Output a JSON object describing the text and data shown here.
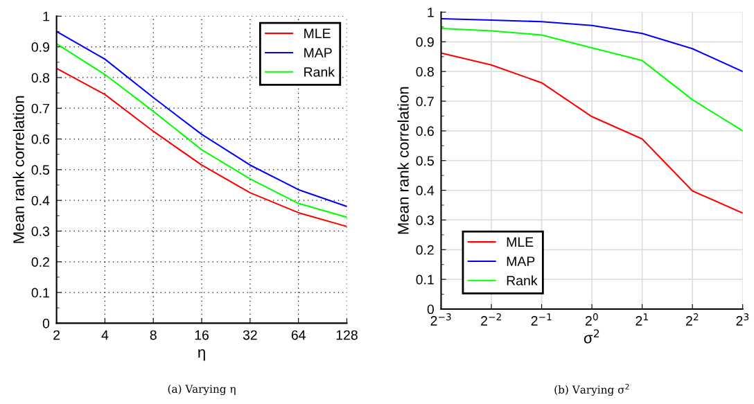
{
  "chart_data": [
    {
      "type": "line",
      "x": [
        2,
        4,
        8,
        16,
        32,
        64,
        128
      ],
      "log": "x",
      "xlim": [
        2,
        128
      ],
      "xticks": [
        2,
        4,
        8,
        16,
        32,
        64,
        128
      ],
      "ylim": [
        0,
        1
      ],
      "yticks": [
        0,
        0.1,
        0.2,
        0.3,
        0.4,
        0.5,
        0.6,
        0.7,
        0.8,
        0.9,
        1
      ],
      "xlabel": "η",
      "ylabel": "Mean rank correlation",
      "grid": true,
      "legend": "top right",
      "annotations": [
        "(a) Varying η"
      ],
      "series": [
        {
          "name": "MLE",
          "color": "#ff0000",
          "values": [
            0.83,
            0.745,
            0.625,
            0.515,
            0.425,
            0.36,
            0.315
          ]
        },
        {
          "name": "MAP",
          "color": "#0000ff",
          "values": [
            0.95,
            0.86,
            0.735,
            0.615,
            0.515,
            0.435,
            0.38
          ]
        },
        {
          "name": "Rank",
          "color": "#00ff00",
          "values": [
            0.91,
            0.81,
            0.69,
            0.565,
            0.47,
            0.39,
            0.345
          ]
        }
      ]
    },
    {
      "type": "line",
      "x": [
        0.125,
        0.25,
        0.5,
        1,
        2,
        4,
        8
      ],
      "log": "x",
      "xlim": [
        0.125,
        8
      ],
      "xticks": [
        {
          "value": 0.125,
          "label": "2$^{−3}$"
        },
        {
          "value": 0.25,
          "label": "2$^{−2}$"
        },
        {
          "value": 0.5,
          "label": "2$^{−1}$"
        },
        {
          "value": 1,
          "label": "2$^{0}$"
        },
        {
          "value": 2,
          "label": "2$^{1}$"
        },
        {
          "value": 4,
          "label": "2$^{2}$"
        },
        {
          "value": 8,
          "label": "2$^{3}$"
        }
      ],
      "ylim": [
        0,
        1
      ],
      "yticks": [
        0,
        0.1,
        0.2,
        0.3,
        0.4,
        0.5,
        0.6,
        0.7,
        0.8,
        0.9,
        1
      ],
      "xlabel": "σ$^{2}$",
      "ylabel": "Mean rank correlation",
      "grid": true,
      "legend": "bottom left",
      "annotations": [
        "(b) Varying σ$^{2}$"
      ],
      "series": [
        {
          "name": "MLE",
          "color": "#ff0000",
          "values": [
            0.862,
            0.822,
            0.762,
            0.648,
            0.573,
            0.398,
            0.323
          ]
        },
        {
          "name": "MAP",
          "color": "#0000ff",
          "values": [
            0.978,
            0.973,
            0.968,
            0.955,
            0.928,
            0.877,
            0.8
          ]
        },
        {
          "name": "Rank",
          "color": "#00ff00",
          "values": [
            0.945,
            0.937,
            0.923,
            0.88,
            0.837,
            0.705,
            0.6
          ]
        }
      ]
    }
  ]
}
